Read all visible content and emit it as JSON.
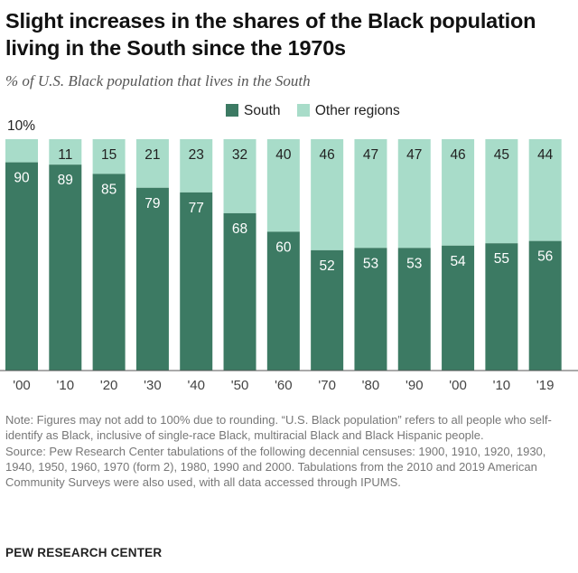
{
  "title": "Slight increases in the shares of the Black population living in the South since the 1970s",
  "subtitle": "% of U.S. Black population that lives in the South",
  "legend": {
    "south": "South",
    "other": "Other regions"
  },
  "colors": {
    "south": "#3c7a63",
    "other": "#a8dcc9",
    "label_on_dark": "#ffffff",
    "label_on_light": "#222222"
  },
  "chart_data": {
    "type": "bar",
    "stacked": true,
    "categories": [
      "'00",
      "'10",
      "'20",
      "'30",
      "'40",
      "'50",
      "'60",
      "'70",
      "'80",
      "'90",
      "'00",
      "'10",
      "'19"
    ],
    "series": [
      {
        "name": "South",
        "values": [
          90,
          89,
          85,
          79,
          77,
          68,
          60,
          52,
          53,
          53,
          54,
          55,
          56
        ]
      },
      {
        "name": "Other regions",
        "values": [
          10,
          11,
          15,
          21,
          23,
          32,
          40,
          46,
          47,
          47,
          46,
          45,
          44
        ]
      }
    ],
    "other_labels": [
      "10%",
      "11",
      "15",
      "21",
      "23",
      "32",
      "40",
      "46",
      "47",
      "47",
      "46",
      "45",
      "44"
    ],
    "ylim": [
      0,
      100
    ],
    "grid": false,
    "legend_position": "top"
  },
  "note": "Note: Figures may not add to 100% due to rounding. “U.S. Black population” refers to all people who self-identify as Black, inclusive of single-race Black, multiracial Black and Black Hispanic people.",
  "source": "Source: Pew Research Center tabulations of the following decennial censuses: 1900, 1910, 1920, 1930, 1940, 1950, 1960, 1970 (form 2), 1980, 1990 and 2000. Tabulations from the 2010 and 2019 American Community Surveys were also used, with all data accessed through IPUMS.",
  "brand": "PEW RESEARCH CENTER"
}
